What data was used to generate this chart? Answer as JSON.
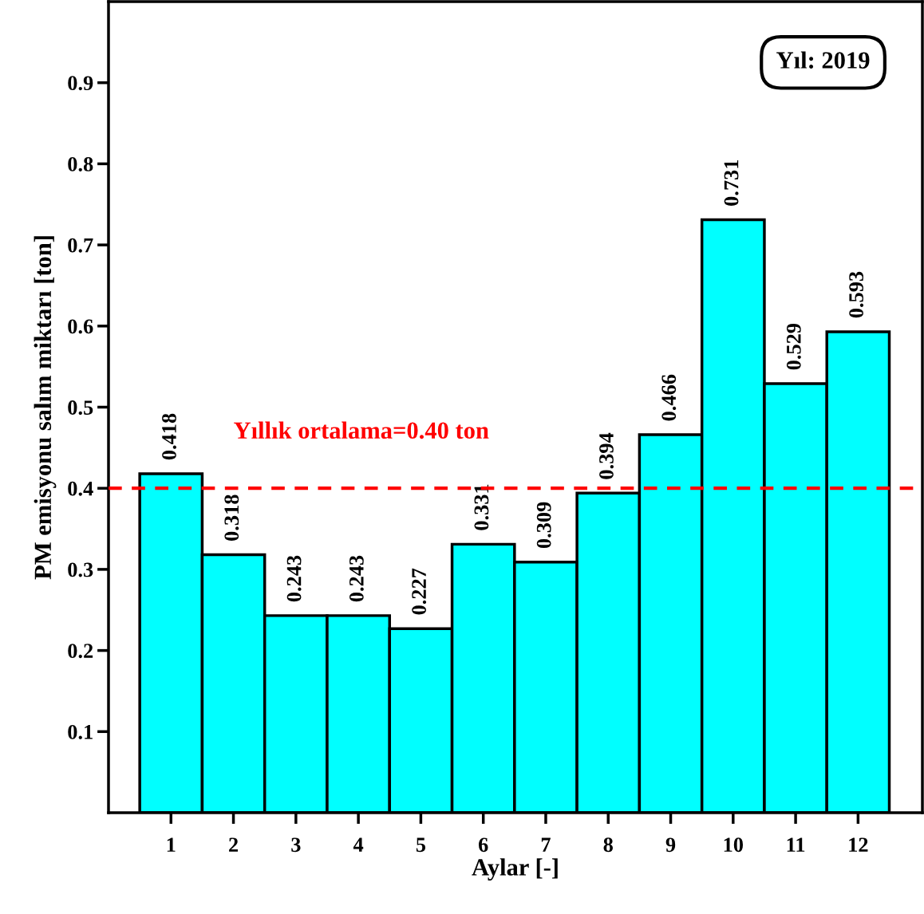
{
  "chart_data": {
    "type": "bar",
    "xlabel": "Aylar [-]",
    "ylabel": "PM emisyonu salım miktarı [ton]",
    "categories": [
      "1",
      "2",
      "3",
      "4",
      "5",
      "6",
      "7",
      "8",
      "9",
      "10",
      "11",
      "12"
    ],
    "values": [
      0.418,
      0.318,
      0.243,
      0.243,
      0.227,
      0.331,
      0.309,
      0.394,
      0.466,
      0.731,
      0.529,
      0.593
    ],
    "color": "#00ffff",
    "data_labels": true,
    "ylim": [
      0,
      1.0
    ],
    "yticks": [
      0.1,
      0.2,
      0.3,
      0.4,
      0.5,
      0.6,
      0.7,
      0.8,
      0.9
    ],
    "grid": false,
    "ref_lines": [
      {
        "axis": "y",
        "value": 0.4,
        "label": "Yıllık ortalama=0.40 ton",
        "color": "#ff0000",
        "line_style": "dashed"
      }
    ],
    "annotations": [
      "Yıl: 2019"
    ]
  }
}
